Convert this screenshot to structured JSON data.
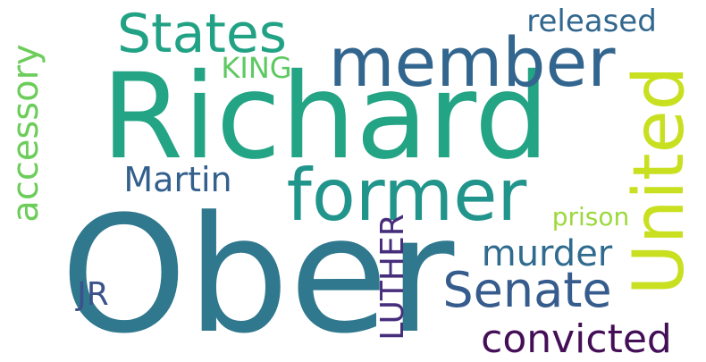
{
  "words": [
    {
      "key": "ober",
      "text": "Ober",
      "color": "#30788e"
    },
    {
      "key": "richard",
      "text": "Richard",
      "color": "#23a484"
    },
    {
      "key": "member",
      "text": "member",
      "color": "#32668e"
    },
    {
      "key": "states",
      "text": "States",
      "color": "#22a285"
    },
    {
      "key": "former",
      "text": "former",
      "color": "#21948b"
    },
    {
      "key": "united",
      "text": "United",
      "color": "#c8e020"
    },
    {
      "key": "senate",
      "text": "Senate",
      "color": "#365c8d"
    },
    {
      "key": "convicted",
      "text": "convicted",
      "color": "#440f57"
    },
    {
      "key": "murder",
      "text": "murder",
      "color": "#2f6b8e"
    },
    {
      "key": "martin",
      "text": "Martin",
      "color": "#34608d"
    },
    {
      "key": "accessory",
      "text": "accessory",
      "color": "#6ccd5a"
    },
    {
      "key": "released",
      "text": "released",
      "color": "#31678e"
    },
    {
      "key": "king",
      "text": "KING",
      "color": "#5ec962"
    },
    {
      "key": "luther",
      "text": "LUTHER",
      "color": "#472e7c"
    },
    {
      "key": "prison",
      "text": "prison",
      "color": "#9bd93c"
    },
    {
      "key": "jr",
      "text": "JR",
      "color": "#3b528b"
    }
  ],
  "background_color": "#ffffff"
}
